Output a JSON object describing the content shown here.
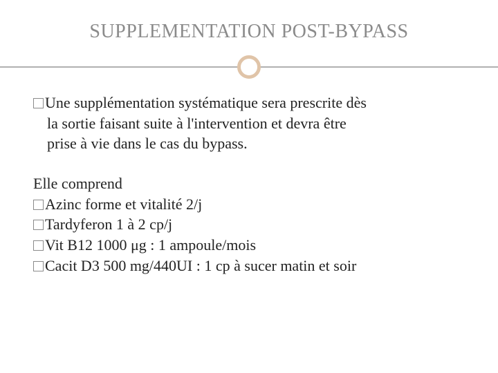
{
  "title": "SUPPLEMENTATION POST-BYPASS",
  "colors": {
    "title_color": "#8b8b8b",
    "accent_circle": "#e0c4a8",
    "divider": "#b0b0b0",
    "text": "#222222",
    "background": "#ffffff"
  },
  "typography": {
    "title_fontsize": 28,
    "body_fontsize": 22,
    "font_family": "Georgia, serif"
  },
  "para1": {
    "line1": "Une supplémentation systématique sera prescrite dès",
    "line2": "la sortie faisant suite à l'intervention et devra être",
    "line3": "prise à vie dans le cas du bypass."
  },
  "list_intro": "Elle comprend",
  "items": [
    "Azinc forme et vitalité 2/j",
    "Tardyferon 1 à 2 cp/j",
    "Vit B12 1000 μg : 1 ampoule/mois",
    "Cacit D3  500 mg/440UI : 1 cp à sucer matin et soir"
  ]
}
